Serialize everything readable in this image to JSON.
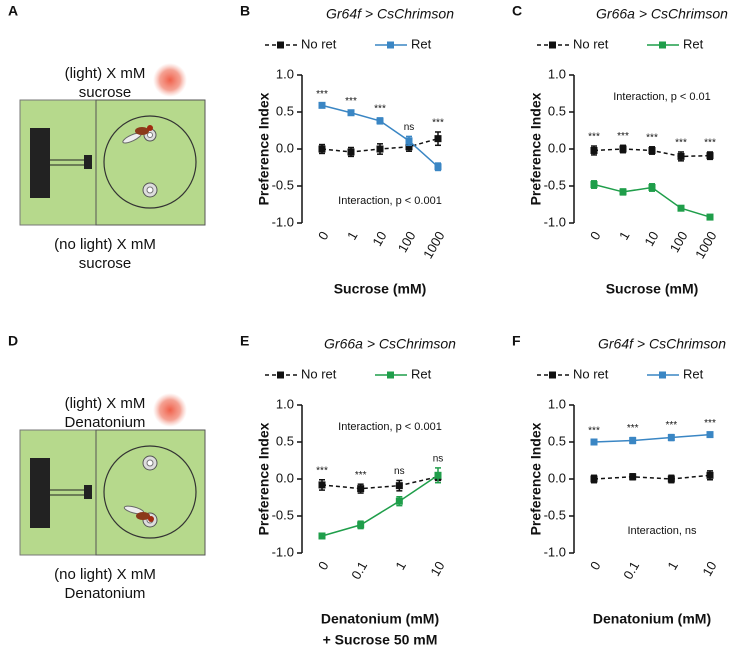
{
  "diagrams": [
    {
      "panel": "A",
      "top": [
        "(light) X mM",
        "sucrose"
      ],
      "bottom": [
        "(no light) X mM",
        "sucrose"
      ]
    },
    {
      "panel": "D",
      "top": [
        "(light) X mM",
        "Denatonium"
      ],
      "bottom": [
        "(no light) X mM",
        "Denatonium"
      ]
    }
  ],
  "chart_data": [
    {
      "type": "line",
      "panel": "B",
      "title": "Gr64f > CsChrimson",
      "ylabel": "Preference Index",
      "xlabel": [
        "Sucrose (mM)"
      ],
      "categories": [
        "0",
        "1",
        "10",
        "100",
        "1000"
      ],
      "series": [
        {
          "name": "No ret",
          "color": "#111111",
          "dashed": true,
          "values": [
            0.0,
            -0.04,
            0.0,
            0.03,
            0.14
          ],
          "errors": [
            0.06,
            0.06,
            0.07,
            0.06,
            0.09
          ]
        },
        {
          "name": "Ret",
          "color": "#3a86c4",
          "dashed": false,
          "values": [
            0.59,
            0.49,
            0.38,
            0.11,
            -0.24
          ],
          "errors": [
            0.03,
            0.03,
            0.04,
            0.06,
            0.05
          ]
        }
      ],
      "annotations": [
        "***",
        "***",
        "***",
        "ns",
        "***"
      ],
      "interaction": "Interaction, p < 0.001",
      "interaction_position": "bottom",
      "ylim": [
        -1,
        1
      ],
      "yticks": [
        {
          "value": -1,
          "label": "-1.0"
        },
        -0.5,
        {
          "value": 0,
          "label": "0.0"
        },
        0.5,
        {
          "value": 1,
          "label": "1.0"
        }
      ]
    },
    {
      "type": "line",
      "panel": "C",
      "title": "Gr66a > CsChrimson",
      "ylabel": "Preference Index",
      "xlabel": [
        "Sucrose (mM)"
      ],
      "categories": [
        "0",
        "1",
        "10",
        "100",
        "1000"
      ],
      "series": [
        {
          "name": "No ret",
          "color": "#111111",
          "dashed": true,
          "values": [
            -0.02,
            0.0,
            -0.02,
            -0.1,
            -0.09
          ],
          "errors": [
            0.06,
            0.05,
            0.05,
            0.06,
            0.05
          ]
        },
        {
          "name": "Ret",
          "color": "#1f9e4a",
          "dashed": false,
          "values": [
            -0.48,
            -0.58,
            -0.52,
            -0.8,
            -0.92
          ],
          "errors": [
            0.05,
            0.04,
            0.05,
            0.03,
            0.03
          ]
        }
      ],
      "annotations": [
        "***",
        "***",
        "***",
        "***",
        "***"
      ],
      "interaction": "Interaction, p < 0.01",
      "interaction_position": "top",
      "ylim": [
        -1,
        1
      ],
      "yticks": [
        {
          "value": -1,
          "label": "-1.0"
        },
        -0.5,
        {
          "value": 0,
          "label": "0.0"
        },
        0.5,
        {
          "value": 1,
          "label": "1.0"
        }
      ]
    },
    {
      "type": "line",
      "panel": "E",
      "title": "Gr66a > CsChrimson",
      "ylabel": "Preference Index",
      "xlabel": [
        "Denatonium (mM)",
        "+ Sucrose 50 mM"
      ],
      "categories": [
        "0",
        "0.1",
        "1",
        "10"
      ],
      "series": [
        {
          "name": "No ret",
          "color": "#111111",
          "dashed": true,
          "values": [
            -0.08,
            -0.13,
            -0.09,
            0.03
          ],
          "errors": [
            0.07,
            0.06,
            0.07,
            0.05
          ]
        },
        {
          "name": "Ret",
          "color": "#1f9e4a",
          "dashed": false,
          "values": [
            -0.77,
            -0.62,
            -0.3,
            0.05
          ],
          "errors": [
            0.03,
            0.05,
            0.06,
            0.1
          ]
        }
      ],
      "annotations": [
        "***",
        "***",
        "ns",
        "ns"
      ],
      "interaction": "Interaction, p < 0.001",
      "interaction_position": "top",
      "ylim": [
        -1,
        1
      ],
      "yticks": [
        {
          "value": -1,
          "label": "-1.0"
        },
        -0.5,
        {
          "value": 0,
          "label": "0.0"
        },
        0.5,
        {
          "value": 1,
          "label": "1.0"
        }
      ]
    },
    {
      "type": "line",
      "panel": "F",
      "title": "Gr64f > CsChrimson",
      "ylabel": "Preference Index",
      "xlabel": [
        "Denatonium (mM)"
      ],
      "categories": [
        "0",
        "0.1",
        "1",
        "10"
      ],
      "series": [
        {
          "name": "No ret",
          "color": "#111111",
          "dashed": true,
          "values": [
            0.0,
            0.03,
            0.0,
            0.05
          ],
          "errors": [
            0.05,
            0.04,
            0.05,
            0.06
          ]
        },
        {
          "name": "Ret",
          "color": "#3a86c4",
          "dashed": false,
          "values": [
            0.5,
            0.52,
            0.56,
            0.6
          ],
          "errors": [
            0.03,
            0.04,
            0.04,
            0.03
          ]
        }
      ],
      "annotations": [
        "***",
        "***",
        "***",
        "***"
      ],
      "interaction": "Interaction, ns",
      "interaction_position": "bottom",
      "ylim": [
        -1,
        1
      ],
      "yticks": [
        {
          "value": -1,
          "label": "-1.0"
        },
        -0.5,
        {
          "value": 0,
          "label": "0.0"
        },
        0.5,
        {
          "value": 1,
          "label": "1.0"
        }
      ]
    }
  ]
}
